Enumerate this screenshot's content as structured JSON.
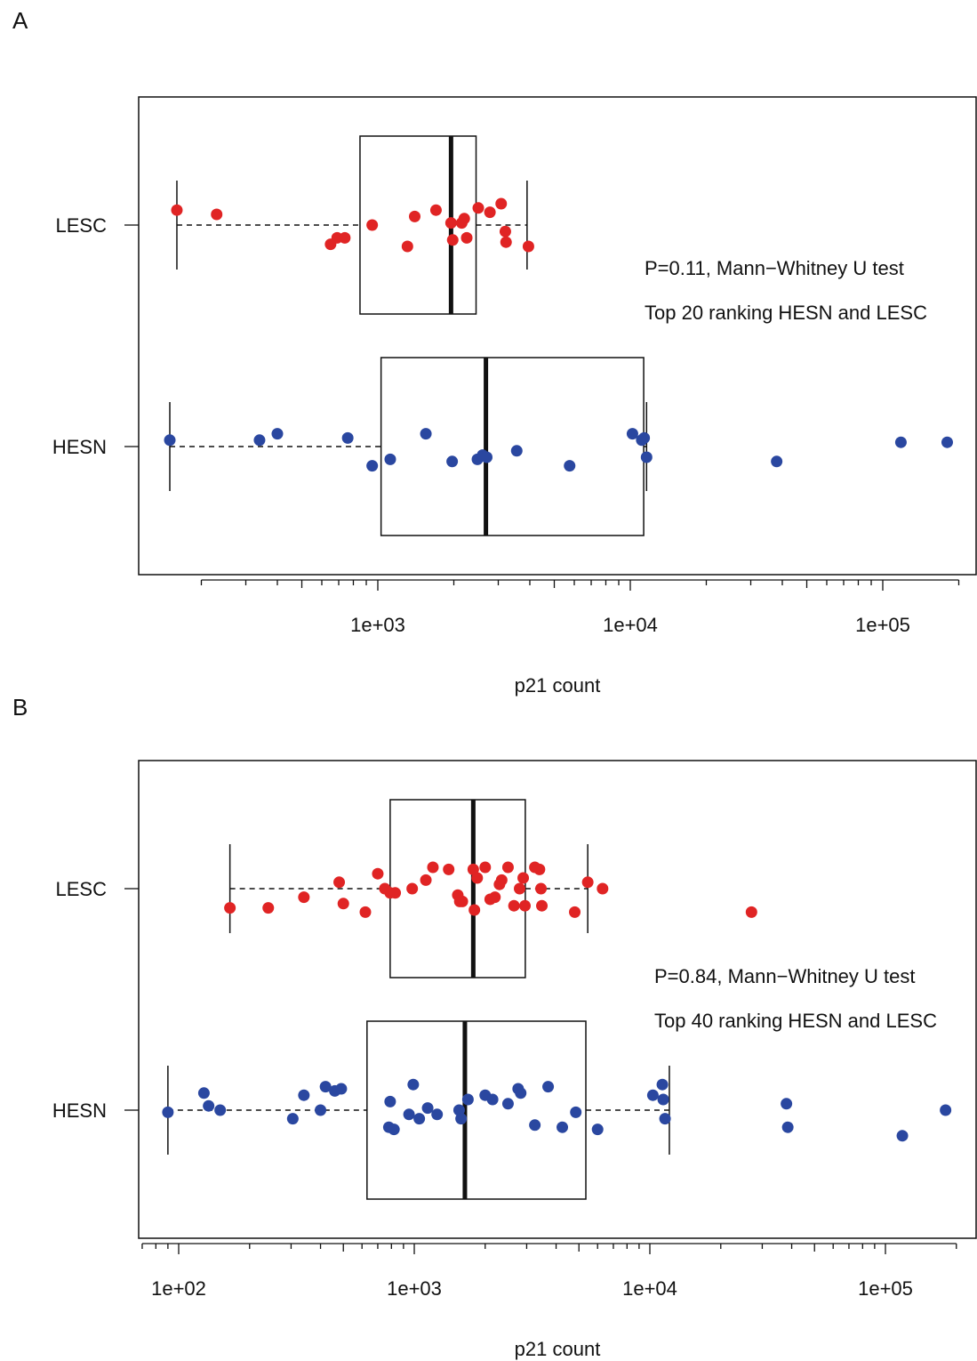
{
  "panels": [
    {
      "letter": "A",
      "chart_data": {
        "type": "box",
        "orientation": "horizontal",
        "xscale": "log",
        "xlabel": "p21 count",
        "xticklabels": [
          "1e+03",
          "1e+04",
          "1e+05"
        ],
        "xlim": [
          100,
          250000
        ],
        "categories": [
          "LESC",
          "HESN"
        ],
        "annotations": [
          "P=0.11, Mann−Whitney U test",
          "Top 20 ranking HESN and LESC"
        ],
        "colors": {
          "LESC": "#e02424",
          "HESN": "#2a47a0"
        },
        "boxes": [
          {
            "name": "LESC",
            "min": 160,
            "q1": 850,
            "median": 1950,
            "q3": 2450,
            "max": 3900
          },
          {
            "name": "HESN",
            "min": 150,
            "q1": 1030,
            "median": 2680,
            "q3": 11300,
            "max": 11600
          }
        ],
        "points": {
          "LESC": [
            [
              160,
              1.07
            ],
            [
              230,
              1.05
            ],
            [
              650,
              0.91
            ],
            [
              690,
              0.94
            ],
            [
              740,
              0.94
            ],
            [
              950,
              1.0
            ],
            [
              1310,
              0.9
            ],
            [
              1400,
              1.04
            ],
            [
              1700,
              1.07
            ],
            [
              1950,
              1.01
            ],
            [
              1980,
              0.93
            ],
            [
              2150,
              1.01
            ],
            [
              2200,
              1.03
            ],
            [
              2250,
              0.94
            ],
            [
              2500,
              1.08
            ],
            [
              2780,
              1.06
            ],
            [
              3080,
              1.1
            ],
            [
              3200,
              0.97
            ],
            [
              3220,
              0.92
            ],
            [
              3950,
              0.9
            ]
          ],
          "HESN": [
            [
              150,
              1.03
            ],
            [
              340,
              1.03
            ],
            [
              400,
              1.06
            ],
            [
              760,
              1.04
            ],
            [
              950,
              0.91
            ],
            [
              1120,
              0.94
            ],
            [
              1550,
              1.06
            ],
            [
              1970,
              0.93
            ],
            [
              2480,
              0.94
            ],
            [
              2600,
              0.96
            ],
            [
              2700,
              0.95
            ],
            [
              3550,
              0.98
            ],
            [
              5750,
              0.91
            ],
            [
              10200,
              1.06
            ],
            [
              11100,
              1.03
            ],
            [
              11350,
              1.04
            ],
            [
              11600,
              0.95
            ],
            [
              38000,
              0.93
            ],
            [
              118000,
              1.02
            ],
            [
              180000,
              1.02
            ]
          ]
        }
      }
    },
    {
      "letter": "B",
      "chart_data": {
        "type": "box",
        "orientation": "horizontal",
        "xscale": "log",
        "xlabel": "p21 count",
        "xticklabels": [
          "1e+02",
          "1e+03",
          "1e+04",
          "1e+05"
        ],
        "xlim": [
          70,
          250000
        ],
        "categories": [
          "LESC",
          "HESN"
        ],
        "annotations": [
          "P=0.84, Mann−Whitney U test",
          "Top 40 ranking HESN and LESC"
        ],
        "colors": {
          "LESC": "#e02424",
          "HESN": "#2a47a0"
        },
        "boxes": [
          {
            "name": "LESC",
            "min": 165,
            "q1": 790,
            "median": 1780,
            "q3": 2960,
            "max": 5450
          },
          {
            "name": "HESN",
            "min": 90,
            "q1": 630,
            "median": 1640,
            "q3": 5350,
            "max": 12100
          }
        ],
        "points": {
          "LESC": [
            [
              165,
              0.91
            ],
            [
              240,
              0.91
            ],
            [
              340,
              0.96
            ],
            [
              480,
              1.03
            ],
            [
              500,
              0.93
            ],
            [
              620,
              0.89
            ],
            [
              700,
              1.07
            ],
            [
              750,
              1.0
            ],
            [
              790,
              0.98
            ],
            [
              830,
              0.98
            ],
            [
              980,
              1.0
            ],
            [
              1120,
              1.04
            ],
            [
              1200,
              1.1
            ],
            [
              1400,
              1.09
            ],
            [
              1530,
              0.97
            ],
            [
              1560,
              0.94
            ],
            [
              1600,
              0.94
            ],
            [
              1780,
              1.09
            ],
            [
              1800,
              0.9
            ],
            [
              1850,
              1.05
            ],
            [
              2000,
              1.1
            ],
            [
              2100,
              0.95
            ],
            [
              2200,
              0.96
            ],
            [
              2300,
              1.02
            ],
            [
              2350,
              1.04
            ],
            [
              2500,
              1.1
            ],
            [
              2650,
              0.92
            ],
            [
              2800,
              1.0
            ],
            [
              2900,
              1.05
            ],
            [
              2950,
              0.92
            ],
            [
              3250,
              1.1
            ],
            [
              3400,
              1.09
            ],
            [
              3450,
              1.0
            ],
            [
              3480,
              0.92
            ],
            [
              4800,
              0.89
            ],
            [
              5450,
              1.03
            ],
            [
              6300,
              1.0
            ],
            [
              27000,
              0.89
            ]
          ],
          "HESN": [
            [
              90,
              0.99
            ],
            [
              128,
              1.08
            ],
            [
              134,
              1.02
            ],
            [
              150,
              1.0
            ],
            [
              305,
              0.96
            ],
            [
              340,
              1.07
            ],
            [
              400,
              1.0
            ],
            [
              420,
              1.11
            ],
            [
              460,
              1.09
            ],
            [
              490,
              1.1
            ],
            [
              780,
              0.92
            ],
            [
              790,
              1.04
            ],
            [
              820,
              0.91
            ],
            [
              950,
              0.98
            ],
            [
              990,
              1.12
            ],
            [
              1050,
              0.96
            ],
            [
              1140,
              1.01
            ],
            [
              1250,
              0.98
            ],
            [
              1550,
              1.0
            ],
            [
              1580,
              0.96
            ],
            [
              1690,
              1.05
            ],
            [
              2000,
              1.07
            ],
            [
              2150,
              1.05
            ],
            [
              2500,
              1.03
            ],
            [
              2760,
              1.1
            ],
            [
              2830,
              1.08
            ],
            [
              3250,
              0.93
            ],
            [
              3700,
              1.11
            ],
            [
              4250,
              0.92
            ],
            [
              4850,
              0.99
            ],
            [
              6000,
              0.91
            ],
            [
              10300,
              1.07
            ],
            [
              11300,
              1.12
            ],
            [
              11400,
              1.05
            ],
            [
              11600,
              0.96
            ],
            [
              38000,
              1.03
            ],
            [
              38500,
              0.92
            ],
            [
              118000,
              0.88
            ],
            [
              180000,
              1.0
            ]
          ]
        }
      }
    }
  ]
}
